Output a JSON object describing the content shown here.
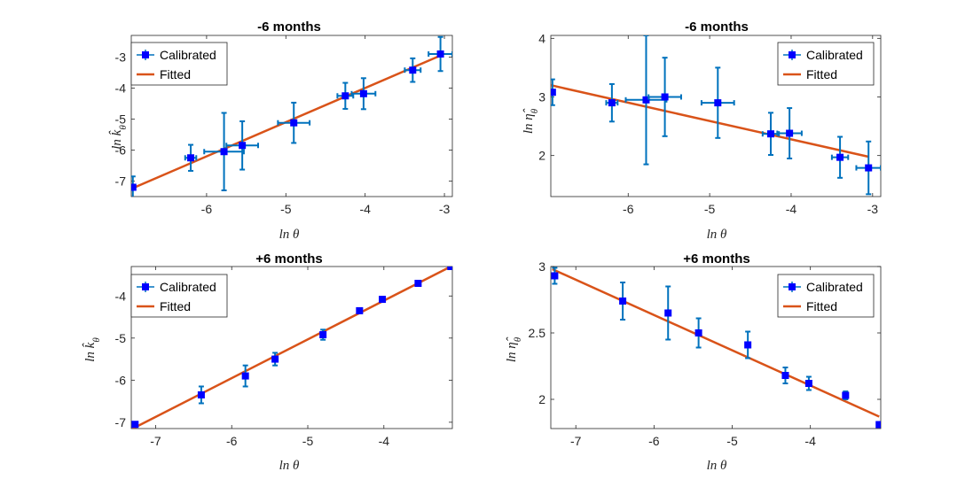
{
  "colors": {
    "calibrated": "#0000ff",
    "errorbar": "#0072bd",
    "fitted": "#d95319",
    "axis": "#262626"
  },
  "chart_data": [
    {
      "type": "scatter",
      "title": "-6 months",
      "xlabel": "ln θ",
      "ylabel_base": "ln k̂",
      "ylabel_sub": "θ",
      "xlim": [
        -6.95,
        -2.9
      ],
      "ylim": [
        -7.5,
        -2.3
      ],
      "xticks": [
        -6,
        -5,
        -4,
        -3
      ],
      "yticks": [
        -7,
        -6,
        -5,
        -4,
        -3
      ],
      "legend": [
        "Calibrated",
        "Fitted"
      ],
      "legend_position": "top-left",
      "series": [
        {
          "name": "Calibrated",
          "x": [
            -6.93,
            -6.2,
            -5.78,
            -5.55,
            -4.9,
            -4.25,
            -4.02,
            -3.4,
            -3.05
          ],
          "y": [
            -7.2,
            -6.25,
            -6.05,
            -5.85,
            -5.12,
            -4.25,
            -4.18,
            -3.42,
            -2.9
          ],
          "xerr": [
            0.0,
            0.07,
            0.25,
            0.2,
            0.2,
            0.1,
            0.15,
            0.1,
            0.15
          ],
          "yerr": [
            0.35,
            0.42,
            1.25,
            0.78,
            0.65,
            0.42,
            0.5,
            0.38,
            0.55
          ]
        },
        {
          "name": "Fitted",
          "x": [
            -6.95,
            -3.05
          ],
          "y": [
            -7.25,
            -2.95
          ]
        }
      ]
    },
    {
      "type": "scatter",
      "title": "-6 months",
      "xlabel": "ln θ",
      "ylabel_base": "ln η̂",
      "ylabel_sub": "θ",
      "xlim": [
        -6.95,
        -2.9
      ],
      "ylim": [
        1.3,
        4.05
      ],
      "xticks": [
        -6,
        -5,
        -4,
        -3
      ],
      "yticks": [
        2,
        3,
        4
      ],
      "legend": [
        "Calibrated",
        "Fitted"
      ],
      "legend_position": "top-right",
      "series": [
        {
          "name": "Calibrated",
          "x": [
            -6.93,
            -6.2,
            -5.78,
            -5.55,
            -4.9,
            -4.25,
            -4.02,
            -3.4,
            -3.05
          ],
          "y": [
            3.08,
            2.9,
            2.95,
            3.0,
            2.9,
            2.37,
            2.38,
            1.97,
            1.79
          ],
          "xerr": [
            0.0,
            0.07,
            0.25,
            0.2,
            0.2,
            0.1,
            0.15,
            0.1,
            0.15
          ],
          "yerr": [
            0.22,
            0.32,
            1.1,
            0.67,
            0.6,
            0.36,
            0.43,
            0.35,
            0.45
          ]
        },
        {
          "name": "Fitted",
          "x": [
            -6.95,
            -3.05
          ],
          "y": [
            3.2,
            1.98
          ]
        }
      ]
    },
    {
      "type": "scatter",
      "title": "+6 months",
      "xlabel": "ln θ",
      "ylabel_base": "ln k̂",
      "ylabel_sub": "θ",
      "xlim": [
        -7.32,
        -3.1
      ],
      "ylim": [
        -7.15,
        -3.3
      ],
      "xticks": [
        -7,
        -6,
        -5,
        -4
      ],
      "yticks": [
        -7,
        -6,
        -5,
        -4
      ],
      "legend": [
        "Calibrated",
        "Fitted"
      ],
      "legend_position": "top-left",
      "series": [
        {
          "name": "Calibrated",
          "x": [
            -7.27,
            -6.4,
            -5.82,
            -5.43,
            -4.8,
            -4.32,
            -4.02,
            -3.55,
            -3.12
          ],
          "y": [
            -7.05,
            -6.35,
            -5.9,
            -5.5,
            -4.92,
            -4.35,
            -4.08,
            -3.7,
            -3.3
          ],
          "xerr": [
            0.02,
            0.02,
            0.02,
            0.02,
            0.02,
            0.02,
            0.02,
            0.02,
            0.02
          ],
          "yerr": [
            0.05,
            0.2,
            0.25,
            0.15,
            0.12,
            0.05,
            0.05,
            0.05,
            0.02
          ]
        },
        {
          "name": "Fitted",
          "x": [
            -7.3,
            -3.12
          ],
          "y": [
            -7.15,
            -3.3
          ]
        }
      ]
    },
    {
      "type": "scatter",
      "title": "+6 months",
      "xlabel": "ln θ",
      "ylabel_base": "ln η̂",
      "ylabel_sub": "θ",
      "xlim": [
        -7.32,
        -3.1
      ],
      "ylim": [
        1.78,
        3.0
      ],
      "xticks": [
        -7,
        -6,
        -5,
        -4
      ],
      "yticks": [
        2,
        2.5,
        3
      ],
      "legend": [
        "Calibrated",
        "Fitted"
      ],
      "legend_position": "top-right",
      "series": [
        {
          "name": "Calibrated",
          "x": [
            -7.27,
            -6.4,
            -5.82,
            -5.43,
            -4.8,
            -4.32,
            -4.02,
            -3.55,
            -3.12
          ],
          "y": [
            2.93,
            2.74,
            2.65,
            2.5,
            2.41,
            2.18,
            2.12,
            2.03,
            1.81
          ],
          "xerr": [
            0.02,
            0.02,
            0.02,
            0.02,
            0.02,
            0.02,
            0.02,
            0.02,
            0.02
          ],
          "yerr": [
            0.06,
            0.14,
            0.2,
            0.11,
            0.1,
            0.06,
            0.05,
            0.03,
            0.02
          ]
        },
        {
          "name": "Fitted",
          "x": [
            -7.3,
            -3.12
          ],
          "y": [
            2.98,
            1.87
          ]
        }
      ]
    }
  ]
}
